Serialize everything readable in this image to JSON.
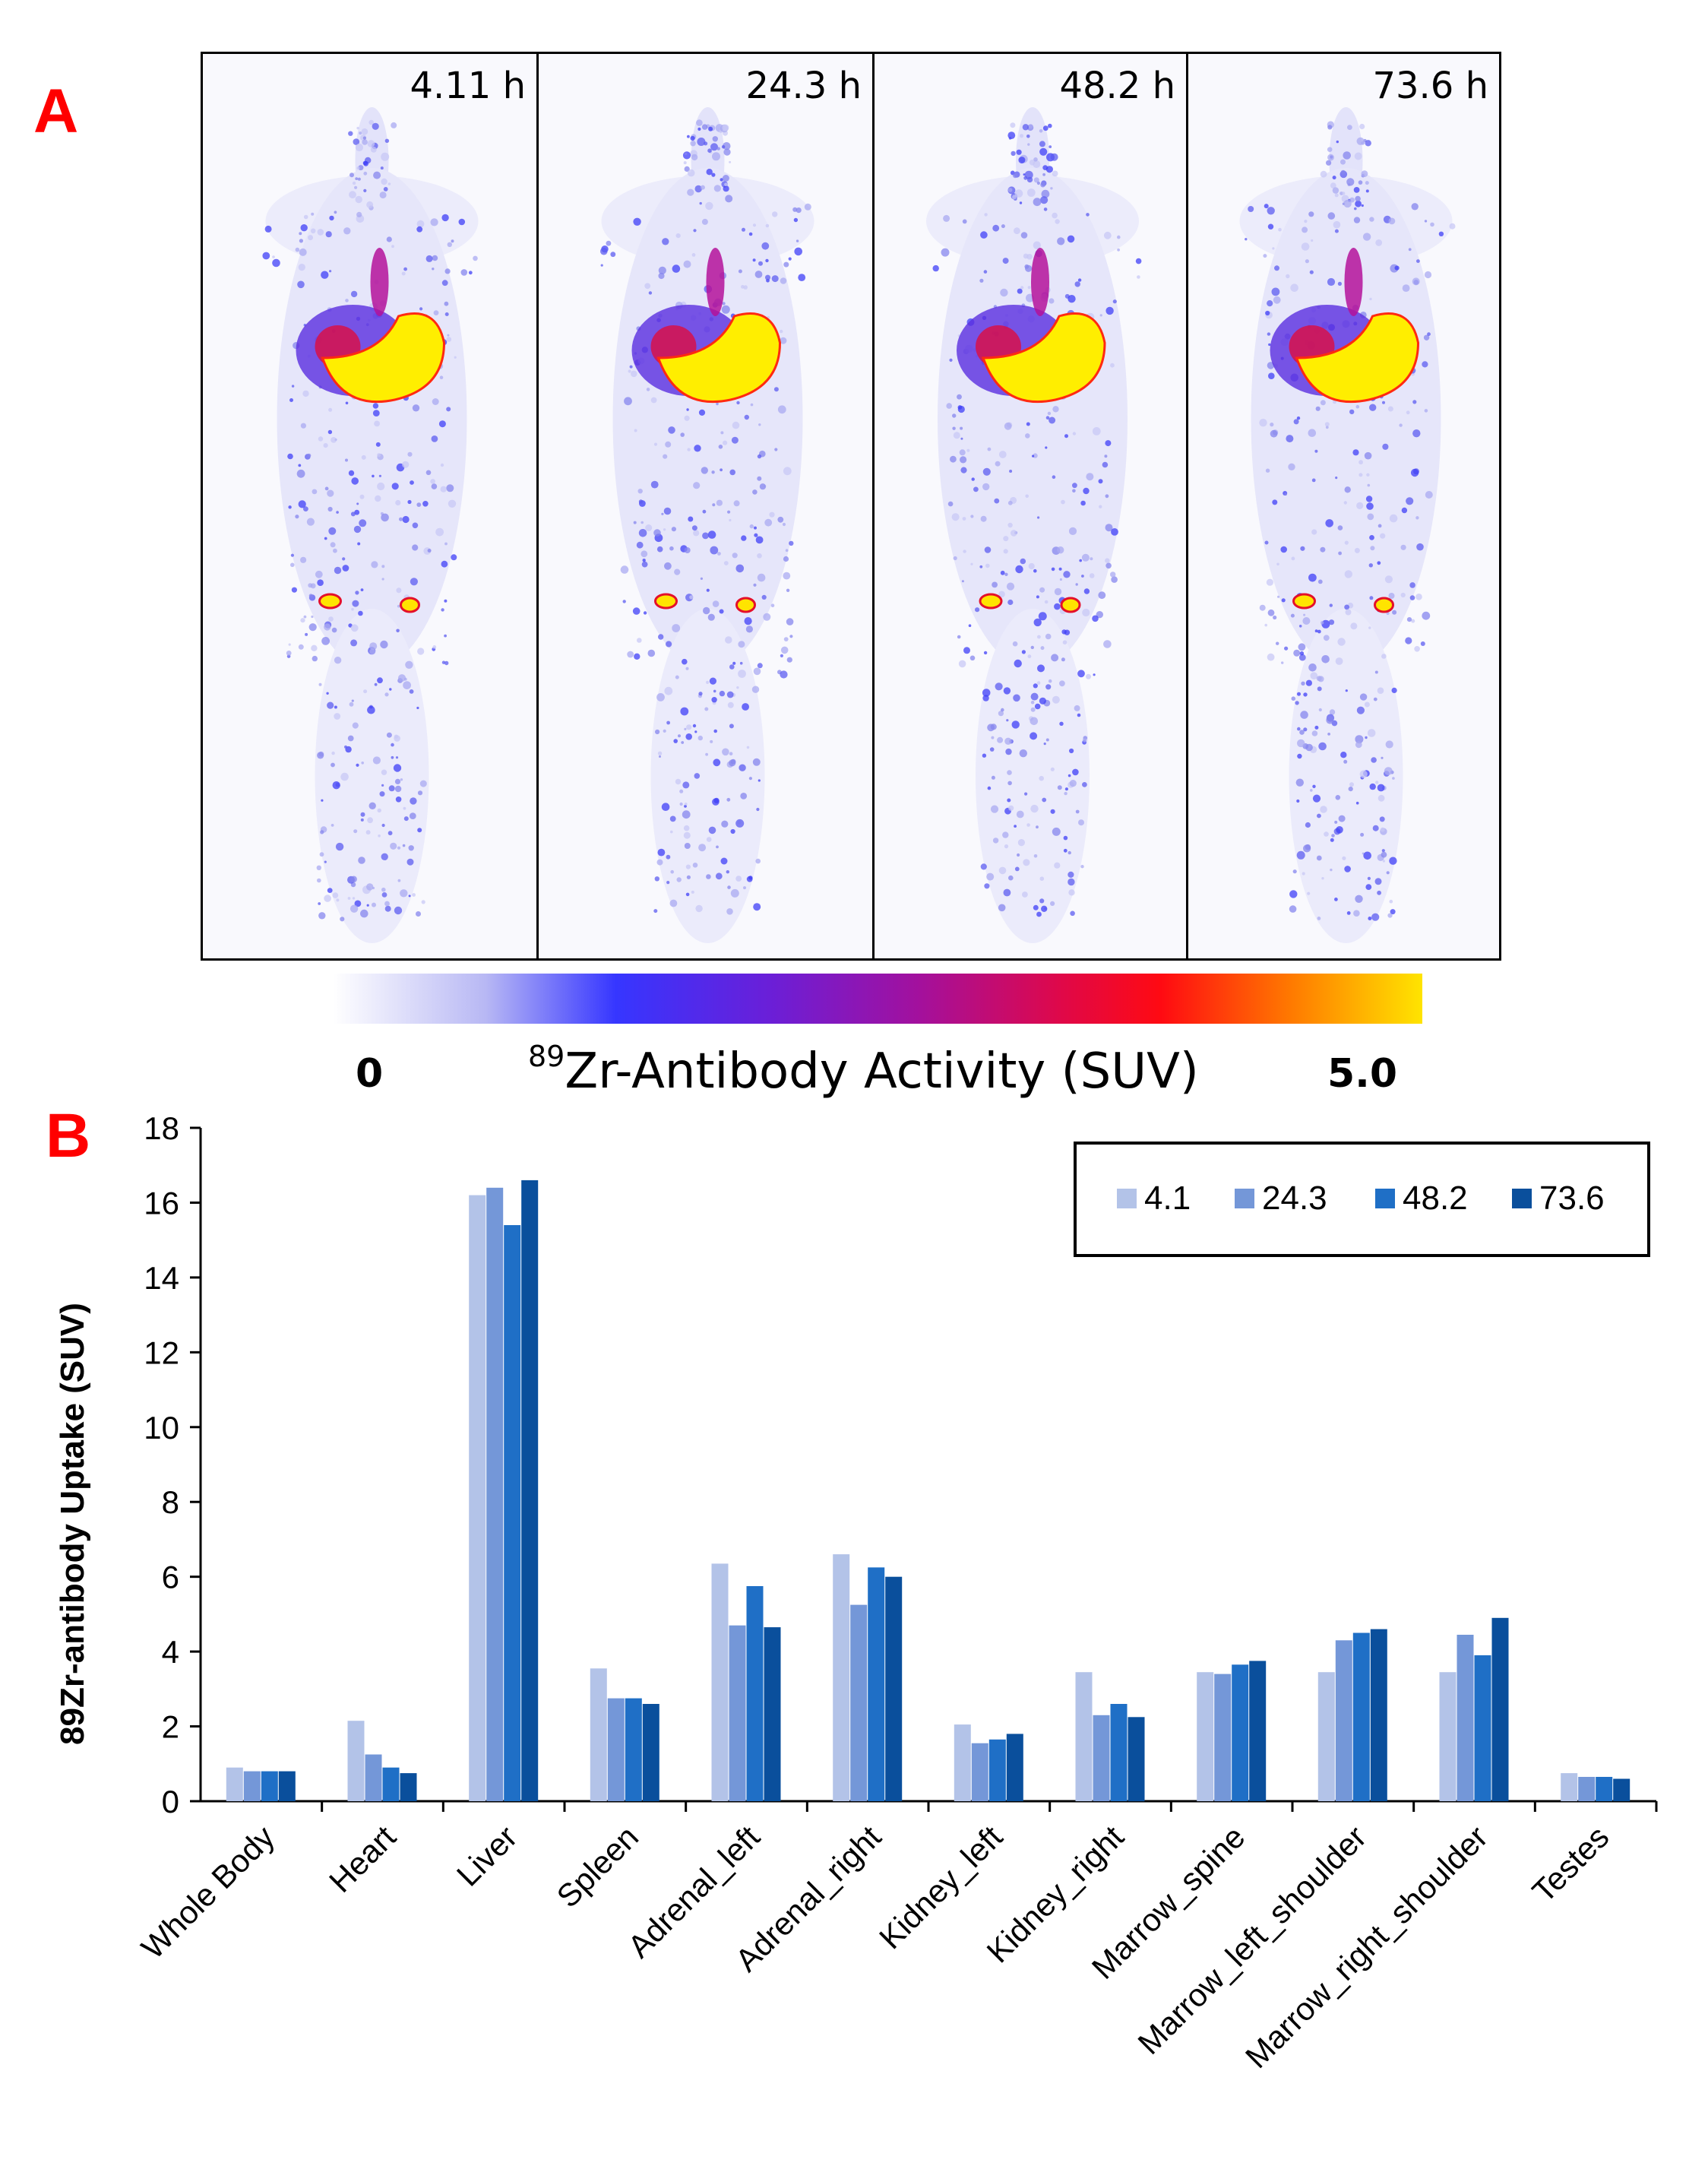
{
  "panel_a": {
    "label": "A",
    "time_labels": [
      "4.11 h",
      "24.3 h",
      "48.2 h",
      "73.6 h"
    ],
    "colorbar": {
      "min": "0",
      "max": "5.0",
      "title_sup": "89",
      "title_rest": "Zr-Antibody Activity (SUV)",
      "colors": [
        "#ffffff",
        "#b8b8f4",
        "#3636ff",
        "#6a1fd8",
        "#a4109c",
        "#e00848",
        "#ff0a12",
        "#ff7a00",
        "#ffe400"
      ]
    }
  },
  "panel_b": {
    "label": "B"
  },
  "chart_data": {
    "type": "bar",
    "title": "",
    "xlabel": "",
    "ylabel": "89Zr-antibody Uptake (SUV)",
    "ylim": [
      0,
      18
    ],
    "yticks": [
      0,
      2,
      4,
      6,
      8,
      10,
      12,
      14,
      16,
      18
    ],
    "grid": false,
    "legend_position": "top-right",
    "categories": [
      "Whole Body",
      "Heart",
      "Liver",
      "Spleen",
      "Adrenal_left",
      "Adrenal_right",
      "Kidney_left",
      "Kidney_right",
      "Marrow_spine",
      "Marrow_left_shoulder",
      "Marrow_right_shoulder",
      "Testes"
    ],
    "series": [
      {
        "name": "4.1",
        "color": "#b3c3e8",
        "values": [
          0.9,
          2.15,
          16.2,
          3.55,
          6.35,
          6.6,
          2.05,
          3.45,
          3.45,
          3.45,
          3.45,
          0.75
        ]
      },
      {
        "name": "24.3",
        "color": "#7497d8",
        "values": [
          0.8,
          1.25,
          16.4,
          2.75,
          4.7,
          5.25,
          1.55,
          2.3,
          3.4,
          4.3,
          4.45,
          0.65
        ]
      },
      {
        "name": "48.2",
        "color": "#1f6fc6",
        "values": [
          0.8,
          0.9,
          15.4,
          2.75,
          5.75,
          6.25,
          1.65,
          2.6,
          3.65,
          4.5,
          3.9,
          0.65
        ]
      },
      {
        "name": "73.6",
        "color": "#0a4f9c",
        "values": [
          0.8,
          0.75,
          16.6,
          2.6,
          4.65,
          6.0,
          1.8,
          2.25,
          3.75,
          4.6,
          4.9,
          0.6
        ]
      }
    ]
  }
}
